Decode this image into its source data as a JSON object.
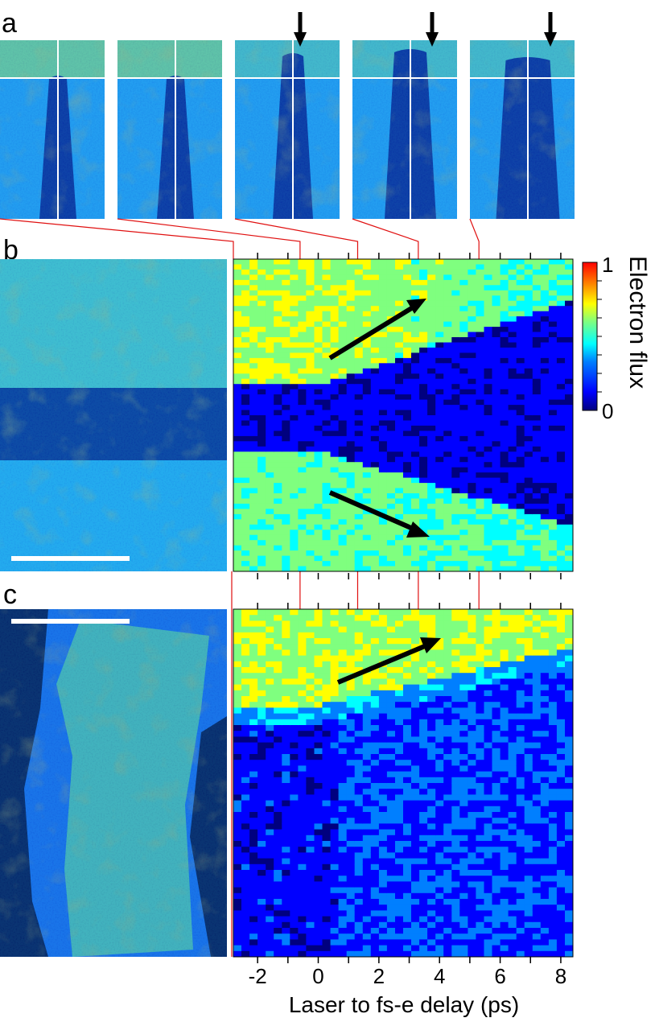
{
  "panels": {
    "a": {
      "letter": "a"
    },
    "b": {
      "letter": "b"
    },
    "c": {
      "letter": "c"
    }
  },
  "colorbar": {
    "label": "Electron flux",
    "max_label": "1",
    "min_label": "0",
    "colormap": "jet",
    "colors": [
      "#00007f",
      "#0000ff",
      "#007fff",
      "#00ffff",
      "#7fff7f",
      "#ffff00",
      "#ff7f00",
      "#ff0000",
      "#7f0000"
    ]
  },
  "x_axis": {
    "label": "Laser to fs-e delay (ps)",
    "range": [
      -2.8,
      8.4
    ],
    "tick_values": [
      -2,
      0,
      2,
      4,
      6,
      8
    ],
    "tick_labels": [
      "-2",
      "0",
      "2",
      "4",
      "6",
      "8"
    ]
  },
  "snapshot_delays_ps": [
    -0.6,
    1.3,
    3.3,
    5.3
  ],
  "accent_colors": {
    "connector_line": "#e01010",
    "scale_bar": "#ffffff",
    "arrow": "#000000",
    "crosshair": "#ffffff"
  }
}
